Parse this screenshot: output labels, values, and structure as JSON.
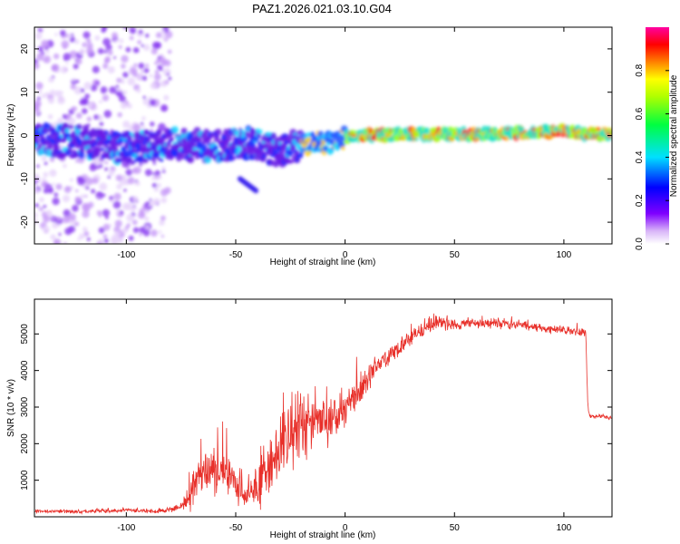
{
  "chart_data": [
    {
      "type": "heatmap",
      "title": "PAZ1.2026.021.03.10.G04",
      "xlabel": "Height of straight line (km)",
      "ylabel": "Frequency (Hz)",
      "xlim": [
        -142,
        122
      ],
      "ylim": [
        -25,
        25
      ],
      "xticks": [
        -100,
        -50,
        0,
        50,
        100
      ],
      "yticks": [
        -20,
        -10,
        0,
        10,
        20
      ],
      "xtick_labels": [
        "-100",
        "-50",
        "0",
        "50",
        "100"
      ],
      "ytick_labels": [
        "-20",
        "-10",
        "0",
        "10",
        "20"
      ],
      "colorbar": {
        "label": "Normalized spectral amplitude",
        "range": [
          0,
          1
        ],
        "ticks": [
          0.0,
          0.2,
          0.4,
          0.6,
          0.8
        ],
        "tick_labels": [
          "0.0",
          "0.2",
          "0.4",
          "0.6",
          "0.8"
        ]
      },
      "ridge": {
        "description_points_x": [
          -140,
          -120,
          -100,
          -80,
          -60,
          -45,
          -35,
          -30,
          -20,
          -10,
          -5,
          0,
          10,
          30,
          50,
          70,
          90,
          100,
          110,
          122
        ],
        "frequency_hz": [
          -1,
          -1.5,
          -3,
          -2,
          -2.5,
          -1.5,
          -3,
          -3.5,
          -2,
          -1.5,
          -2,
          -0.5,
          0.2,
          0.2,
          0.3,
          0.4,
          0.8,
          1.0,
          0.3,
          0.3
        ]
      }
    },
    {
      "type": "line",
      "title": "",
      "xlabel": "Height of straight line (km)",
      "ylabel": "SNR (10 * v/v)",
      "xlim": [
        -142,
        122
      ],
      "ylim": [
        0,
        5950
      ],
      "xticks": [
        -100,
        -50,
        0,
        50,
        100
      ],
      "yticks": [
        1000,
        2000,
        3000,
        4000,
        5000
      ],
      "xtick_labels": [
        "-100",
        "-50",
        "0",
        "50",
        "100"
      ],
      "ytick_labels": [
        "1000",
        "2000",
        "3000",
        "4000",
        "5000"
      ],
      "series": [
        {
          "name": "SNR",
          "color": "#e8302a",
          "x": [
            -142,
            -120,
            -100,
            -85,
            -75,
            -70,
            -65,
            -60,
            -55,
            -50,
            -45,
            -40,
            -35,
            -30,
            -25,
            -20,
            -15,
            -10,
            -5,
            0,
            5,
            10,
            15,
            20,
            25,
            30,
            35,
            40,
            50,
            60,
            70,
            80,
            90,
            100,
            110,
            111,
            112,
            122
          ],
          "y": [
            160,
            140,
            180,
            150,
            250,
            700,
            1100,
            1300,
            1200,
            900,
            500,
            900,
            1400,
            1900,
            2200,
            2500,
            2700,
            2600,
            2700,
            3000,
            3300,
            3700,
            4200,
            4400,
            4600,
            4900,
            5100,
            5300,
            5250,
            5300,
            5300,
            5250,
            5150,
            5100,
            5050,
            2900,
            2750,
            2700
          ],
          "noise": [
            50,
            50,
            60,
            60,
            120,
            500,
            650,
            700,
            600,
            550,
            350,
            700,
            900,
            1100,
            1100,
            1000,
            900,
            700,
            650,
            550,
            500,
            400,
            350,
            300,
            250,
            250,
            250,
            250,
            150,
            150,
            150,
            130,
            120,
            110,
            110,
            60,
            60,
            60
          ]
        }
      ]
    }
  ]
}
